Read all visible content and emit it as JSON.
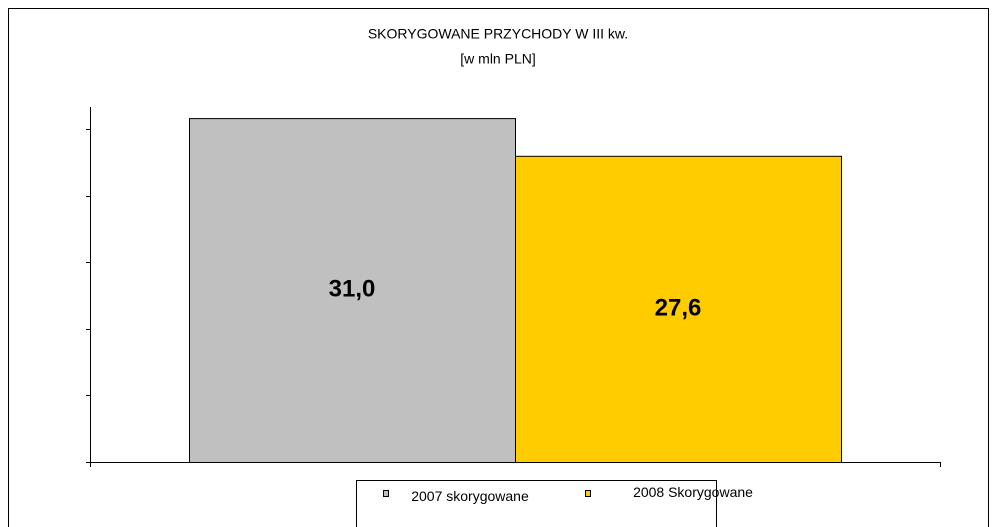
{
  "chart_data": {
    "type": "bar",
    "title": "SKORYGOWANE PRZYCHODY W III kw.",
    "subtitle": "[w mln PLN]",
    "categories": [
      null
    ],
    "series": [
      {
        "name": "2007 skorygowane",
        "color": "#c0c0c0",
        "values": [
          31.0
        ],
        "value_labels": [
          "31,0"
        ]
      },
      {
        "name": "2008 Skorygowane",
        "color": "#ffcc00",
        "values": [
          27.6
        ],
        "value_labels": [
          "27,6"
        ]
      }
    ],
    "ylim": [
      0,
      32
    ],
    "yticks": [
      0,
      6,
      12,
      18,
      24,
      30
    ],
    "legend": "bottom"
  }
}
